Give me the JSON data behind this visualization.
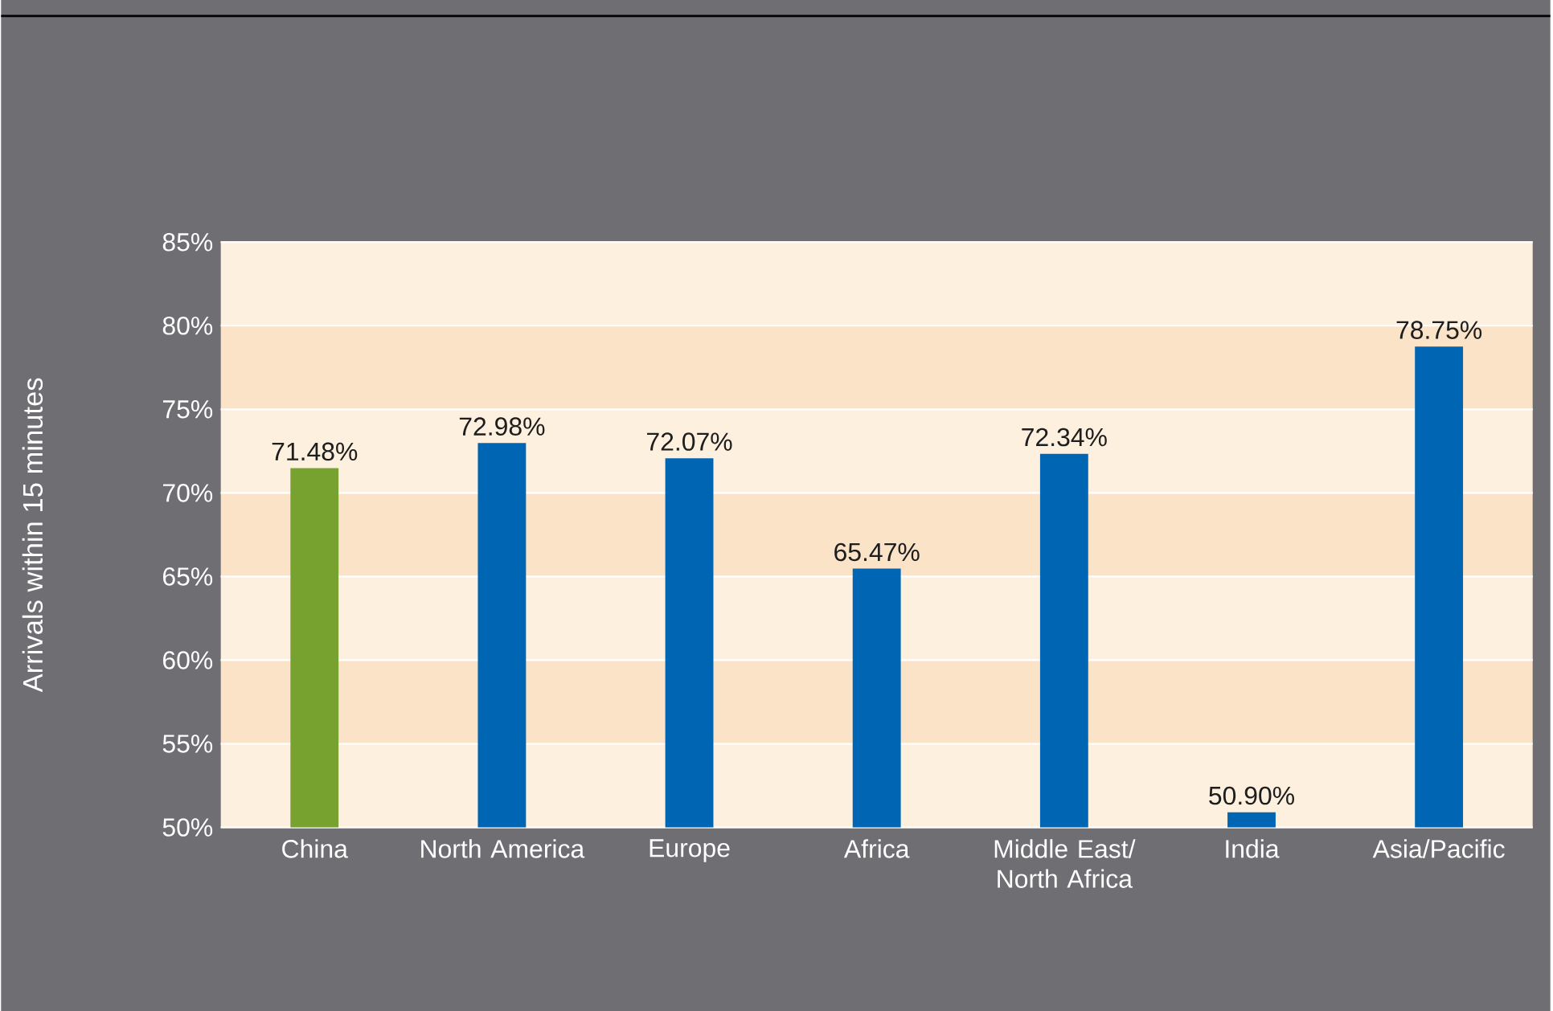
{
  "chart_data": {
    "type": "bar",
    "ylabel": "Arrivals within 15  minutes",
    "categories": [
      "China",
      "North America",
      "Europe",
      "Africa",
      "Middle East/ North Africa",
      "India",
      "Asia/Pacific"
    ],
    "values": [
      71.48,
      72.98,
      72.07,
      65.47,
      72.34,
      50.9,
      78.75
    ],
    "colors": [
      "#77a22f",
      "#0066b3",
      "#0066b3",
      "#0066b3",
      "#0066b3",
      "#0066b3",
      "#0066b3"
    ],
    "ylim": [
      50,
      85
    ],
    "yticks": [
      {
        "value": 50,
        "label": "50%"
      },
      {
        "value": 55,
        "label": "55%"
      },
      {
        "value": 60,
        "label": "60%"
      },
      {
        "value": 65,
        "label": "65%"
      },
      {
        "value": 70,
        "label": "70%"
      },
      {
        "value": 75,
        "label": "75%"
      },
      {
        "value": 80,
        "label": "80%"
      },
      {
        "value": 85,
        "label": "85%"
      }
    ],
    "value_labels": [
      "71.48%",
      "72.98%",
      "72.07%",
      "65.47%",
      "72.34%",
      "50.90%",
      "78.75%"
    ],
    "grid": "y",
    "bands": [
      {
        "axis": "y",
        "from": 50,
        "to": 55,
        "color": "#fdf0df"
      },
      {
        "axis": "y",
        "from": 55,
        "to": 60,
        "color": "#fbe3c8"
      },
      {
        "axis": "y",
        "from": 60,
        "to": 65,
        "color": "#fdf0df"
      },
      {
        "axis": "y",
        "from": 65,
        "to": 70,
        "color": "#fbe3c8"
      },
      {
        "axis": "y",
        "from": 70,
        "to": 75,
        "color": "#fdf0df"
      },
      {
        "axis": "y",
        "from": 75,
        "to": 80,
        "color": "#fbe3c8"
      },
      {
        "axis": "y",
        "from": 80,
        "to": 85,
        "color": "#fdf0df"
      }
    ]
  }
}
